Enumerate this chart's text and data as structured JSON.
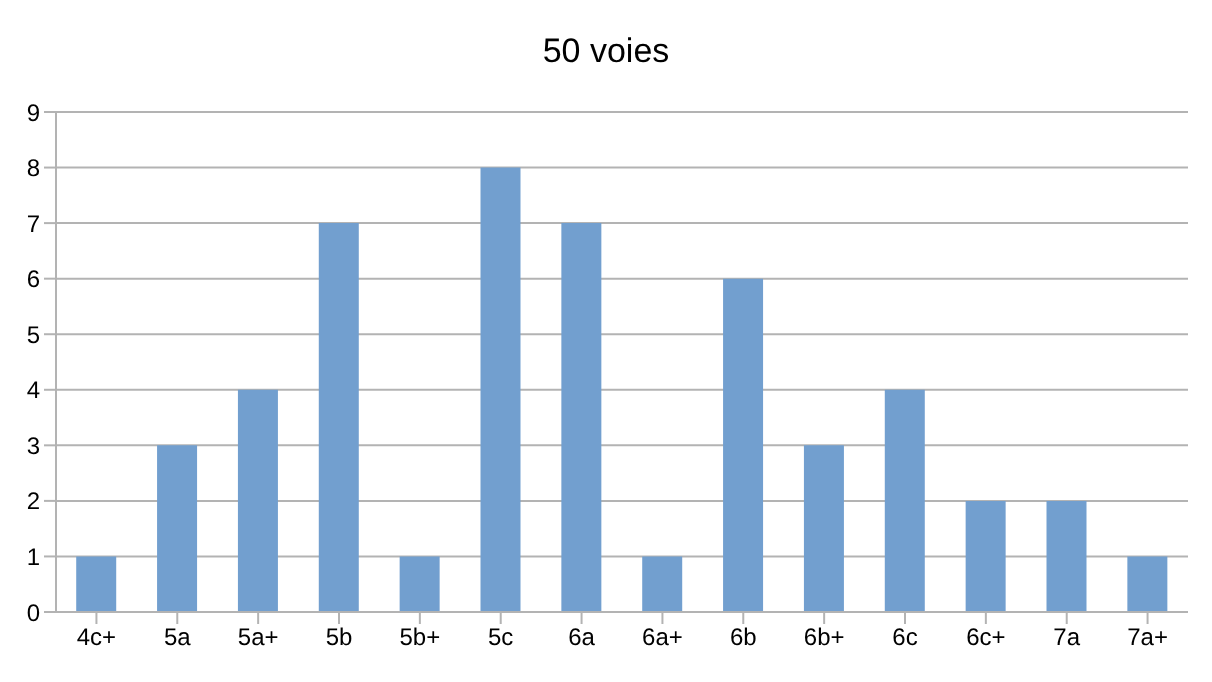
{
  "chart_data": {
    "type": "bar",
    "title": "50 voies",
    "categories": [
      "4c+",
      "5a",
      "5a+",
      "5b",
      "5b+",
      "5c",
      "6a",
      "6a+",
      "6b",
      "6b+",
      "6c",
      "6c+",
      "7a",
      "7a+"
    ],
    "values": [
      1,
      3,
      4,
      7,
      1,
      8,
      7,
      1,
      6,
      3,
      4,
      2,
      2,
      1
    ],
    "color": "#729fcf",
    "ylim": [
      0,
      9
    ],
    "yticks": [
      0,
      1,
      2,
      3,
      4,
      5,
      6,
      7,
      8,
      9
    ],
    "grid": "y"
  }
}
